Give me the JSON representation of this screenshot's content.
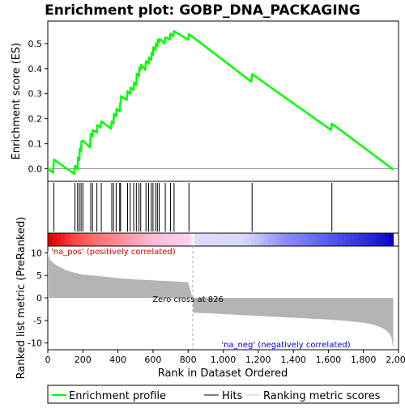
{
  "chart_data": {
    "type": "line",
    "title": "Enrichment plot: GOBP_DNA_PACKAGING",
    "xlabel": "Rank in Dataset Ordered",
    "ylabel_top": "Enrichment score (ES)",
    "ylabel_bottom": "Ranked list metric (PreRanked)",
    "x_ticks": [
      "0",
      "200",
      "400",
      "600",
      "800",
      "1,000",
      "1,200",
      "1,400",
      "1,600",
      "1,800",
      "2,000"
    ],
    "x_tick_values": [
      0,
      200,
      400,
      600,
      800,
      1000,
      1200,
      1400,
      1600,
      1800,
      2000
    ],
    "xlim": [
      0,
      2000
    ],
    "es_ticks": [
      "0.0",
      "0.1",
      "0.2",
      "0.3",
      "0.4",
      "0.5"
    ],
    "es_tick_values": [
      0,
      0.1,
      0.2,
      0.3,
      0.4,
      0.5
    ],
    "es_ylim": [
      -0.05,
      0.59
    ],
    "metric_ticks": [
      "10",
      "5",
      "0",
      "-5",
      "-10"
    ],
    "metric_tick_values": [
      10,
      5,
      0,
      -5,
      -10
    ],
    "metric_ylim": [
      -11.5,
      11.5
    ],
    "annotations": {
      "pos_label": "'na_pos' (positively correlated)",
      "neg_label": "'na_neg' (negatively correlated)",
      "zero_cross": "Zero cross at 826"
    },
    "zero_cross_rank": 826,
    "total_rank": 1970,
    "hits": [
      35,
      155,
      170,
      180,
      190,
      200,
      245,
      255,
      280,
      305,
      365,
      375,
      390,
      410,
      415,
      455,
      470,
      490,
      505,
      520,
      530,
      560,
      575,
      590,
      600,
      615,
      625,
      635,
      670,
      700,
      720,
      805,
      1165,
      1620
    ],
    "series": [
      {
        "name": "Enrichment profile",
        "color": "#00ff00",
        "x": [
          0,
          30,
          35,
          150,
          155,
          170,
          172,
          180,
          182,
          190,
          192,
          200,
          202,
          240,
          245,
          255,
          257,
          280,
          282,
          300,
          305,
          360,
          365,
          375,
          377,
          390,
          392,
          410,
          412,
          415,
          417,
          450,
          455,
          470,
          472,
          490,
          492,
          505,
          507,
          520,
          522,
          530,
          532,
          555,
          560,
          575,
          577,
          590,
          592,
          600,
          602,
          615,
          617,
          625,
          627,
          635,
          637,
          665,
          670,
          695,
          700,
          715,
          720,
          800,
          805,
          1160,
          1165,
          1615,
          1620,
          1970
        ],
        "y": [
          0.0,
          -0.015,
          0.037,
          -0.02,
          0.012,
          0.0,
          0.045,
          0.035,
          0.08,
          0.07,
          0.11,
          0.11,
          0.112,
          0.085,
          0.14,
          0.13,
          0.155,
          0.145,
          0.175,
          0.165,
          0.19,
          0.16,
          0.19,
          0.18,
          0.22,
          0.21,
          0.24,
          0.23,
          0.26,
          0.26,
          0.29,
          0.275,
          0.31,
          0.3,
          0.325,
          0.315,
          0.345,
          0.335,
          0.38,
          0.37,
          0.405,
          0.395,
          0.415,
          0.395,
          0.43,
          0.42,
          0.445,
          0.435,
          0.465,
          0.455,
          0.485,
          0.475,
          0.5,
          0.49,
          0.515,
          0.505,
          0.52,
          0.5,
          0.525,
          0.515,
          0.54,
          0.53,
          0.55,
          0.515,
          0.538,
          0.348,
          0.378,
          0.155,
          0.18,
          -0.003
        ]
      },
      {
        "name": "Hits",
        "color": "#000000"
      },
      {
        "name": "Ranking metric scores",
        "color": "#c8c8c8",
        "x": [
          0,
          5,
          10,
          20,
          40,
          60,
          80,
          100,
          150,
          200,
          300,
          400,
          500,
          600,
          700,
          800,
          826,
          830,
          900,
          1000,
          1100,
          1200,
          1300,
          1400,
          1500,
          1600,
          1700,
          1800,
          1850,
          1900,
          1930,
          1950,
          1960,
          1965,
          1970
        ],
        "y": [
          10.5,
          9.3,
          8.7,
          8.2,
          7.5,
          7.0,
          6.6,
          6.2,
          5.6,
          5.2,
          4.8,
          4.4,
          4.1,
          3.9,
          3.7,
          3.5,
          0,
          -3.3,
          -3.4,
          -3.6,
          -3.8,
          -4.0,
          -4.2,
          -4.4,
          -4.6,
          -4.8,
          -5.1,
          -5.5,
          -5.9,
          -6.5,
          -7.2,
          -8.0,
          -8.8,
          -10.0,
          -11.2
        ]
      }
    ]
  }
}
